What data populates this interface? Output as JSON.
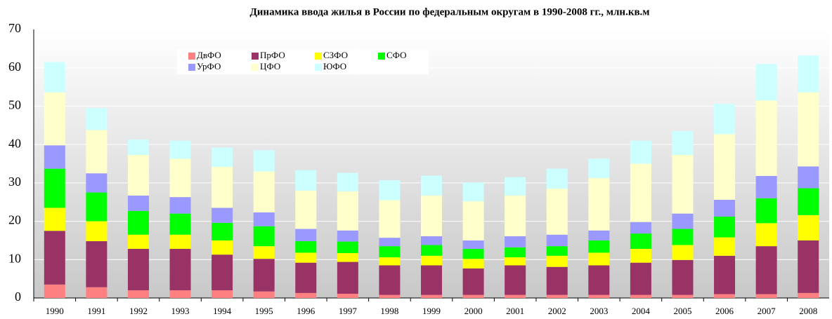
{
  "chart_data": {
    "type": "stacked-bar",
    "title": "Динамика ввода жилья в России по федеральным округам в 1990-2008 гг., млн.кв.м",
    "categories": [
      "1990",
      "1991",
      "1992",
      "1993",
      "1994",
      "1995",
      "1996",
      "1997",
      "1998",
      "1999",
      "2000",
      "2001",
      "2002",
      "2003",
      "2004",
      "2005",
      "2006",
      "2007",
      "2008"
    ],
    "series": [
      {
        "name": "ДвФО",
        "color": "#ff8080",
        "values": [
          3.5,
          2.8,
          2,
          2,
          2,
          1.7,
          1.3,
          1.1,
          0.8,
          0.8,
          0.8,
          0.8,
          0.8,
          0.8,
          0.8,
          0.8,
          1,
          1,
          1.3
        ]
      },
      {
        "name": "ПрФО",
        "color": "#993366",
        "values": [
          14,
          12,
          10.8,
          10.8,
          9.3,
          8.5,
          7.9,
          8.3,
          7.7,
          7.7,
          6.9,
          7.7,
          7.3,
          7.7,
          8.4,
          9.1,
          10,
          12.5,
          13.7
        ]
      },
      {
        "name": "СЗФО",
        "color": "#ffff00",
        "values": [
          6,
          5.2,
          3.7,
          3.7,
          3.7,
          3.3,
          2.6,
          2.3,
          2.1,
          2.5,
          2.5,
          2.1,
          2.9,
          3.3,
          3.6,
          3.9,
          4.8,
          6,
          6.6
        ]
      },
      {
        "name": "СФО",
        "color": "#00ff00",
        "values": [
          10.2,
          7.5,
          6.2,
          5.5,
          4.6,
          5.2,
          3,
          3,
          2.9,
          2.8,
          2.6,
          2.6,
          2.5,
          3.2,
          4,
          4.2,
          5.4,
          6.5,
          7
        ]
      },
      {
        "name": "УрФО",
        "color": "#9999ff",
        "values": [
          6.1,
          5,
          4,
          4.3,
          3.9,
          3.6,
          3.2,
          2.9,
          2.2,
          2.3,
          2.2,
          2.9,
          3,
          2.6,
          3,
          4,
          4.4,
          5.8,
          5.7
        ]
      },
      {
        "name": "ЦФО",
        "color": "#ffffcc",
        "values": [
          13.8,
          11.3,
          10.6,
          10,
          10.7,
          10.7,
          10,
          10.2,
          9.8,
          10.6,
          10.2,
          10.6,
          12,
          13.7,
          15.2,
          15.3,
          17.1,
          19.7,
          19.3
        ]
      },
      {
        "name": "ЮФО",
        "color": "#ccffff",
        "values": [
          7.9,
          5.7,
          4,
          4.7,
          5,
          5.5,
          5.3,
          4.8,
          5.2,
          5.2,
          4.9,
          4.8,
          5.2,
          5,
          6,
          6.2,
          7.9,
          9.5,
          9.6
        ]
      }
    ],
    "ylim": [
      0,
      70
    ],
    "yticks": [
      0,
      10,
      20,
      30,
      40,
      50,
      60,
      70
    ],
    "grid": true
  }
}
